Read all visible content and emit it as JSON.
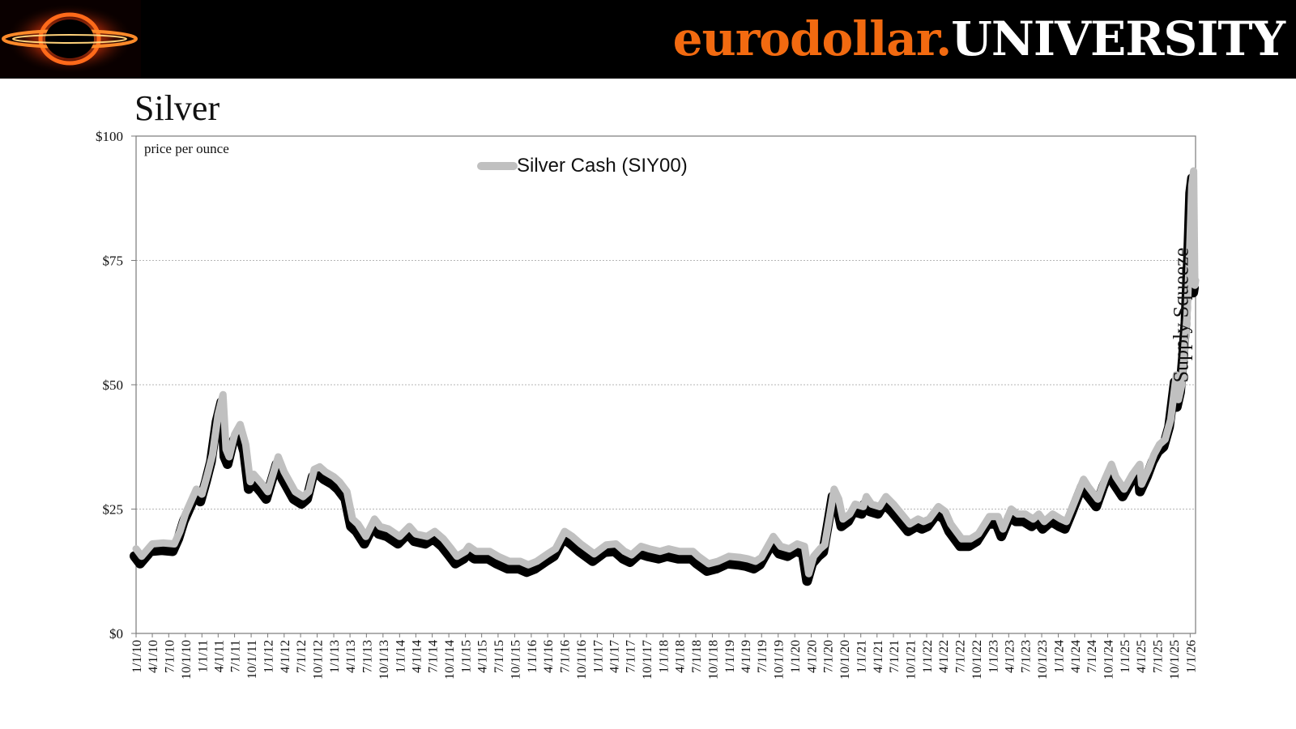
{
  "header": {
    "brand_part1": "eurodollar.",
    "brand_part2": "UNIVERSITY",
    "colors": {
      "background": "#000000",
      "brand_accent": "#f26a10",
      "brand_text": "#ffffff"
    }
  },
  "page_title": "Silver",
  "chart_data": {
    "type": "line",
    "title": "Silver",
    "ylabel": "price per ounce",
    "ylim": [
      0,
      100
    ],
    "xlim": [
      "2010-01-01",
      "2026-01-31"
    ],
    "yticks": [
      0,
      25,
      50,
      75,
      100
    ],
    "ytick_labels": [
      "$0",
      "$25",
      "$50",
      "$75",
      "$100"
    ],
    "xtick_labels": [
      "1/1/10",
      "4/1/10",
      "7/1/10",
      "10/1/10",
      "1/1/11",
      "4/1/11",
      "7/1/11",
      "10/1/11",
      "1/1/12",
      "4/1/12",
      "7/1/12",
      "10/1/12",
      "1/1/13",
      "4/1/13",
      "7/1/13",
      "10/1/13",
      "1/1/14",
      "4/1/14",
      "7/1/14",
      "10/1/14",
      "1/1/15",
      "4/1/15",
      "7/1/15",
      "10/1/15",
      "1/1/16",
      "4/1/16",
      "7/1/16",
      "10/1/16",
      "1/1/17",
      "4/1/17",
      "7/1/17",
      "10/1/17",
      "1/1/18",
      "4/1/18",
      "7/1/18",
      "10/1/18",
      "1/1/19",
      "4/1/19",
      "7/1/19",
      "10/1/19",
      "1/1/20",
      "4/1/20",
      "7/1/20",
      "10/1/20",
      "1/1/21",
      "4/1/21",
      "7/1/21",
      "10/1/21",
      "1/1/22",
      "4/1/22",
      "7/1/22",
      "10/1/22",
      "1/1/23",
      "4/1/23",
      "7/1/23",
      "10/1/23",
      "1/1/24",
      "4/1/24",
      "7/1/24",
      "10/1/24",
      "1/1/25",
      "4/1/25",
      "7/1/25",
      "10/1/25",
      "1/1/26"
    ],
    "grid": "horizontal",
    "legend": "top-center",
    "series": [
      {
        "name": "Silver Cash (SIY00)",
        "color": "#c0c0c0",
        "x": [
          "2010-01-01",
          "2010-02-01",
          "2010-04-01",
          "2010-06-01",
          "2010-08-01",
          "2010-09-01",
          "2010-10-01",
          "2010-12-01",
          "2011-01-01",
          "2011-02-01",
          "2011-03-01",
          "2011-04-01",
          "2011-04-28",
          "2011-05-15",
          "2011-06-01",
          "2011-07-01",
          "2011-08-01",
          "2011-09-01",
          "2011-09-26",
          "2011-10-15",
          "2011-12-01",
          "2012-01-01",
          "2012-02-28",
          "2012-04-01",
          "2012-06-01",
          "2012-07-15",
          "2012-08-15",
          "2012-09-15",
          "2012-10-15",
          "2012-11-15",
          "2013-01-01",
          "2013-02-01",
          "2013-03-15",
          "2013-04-15",
          "2013-05-15",
          "2013-06-28",
          "2013-08-15",
          "2013-09-15",
          "2013-11-01",
          "2014-01-01",
          "2014-02-24",
          "2014-04-01",
          "2014-06-01",
          "2014-07-15",
          "2014-09-01",
          "2014-10-15",
          "2014-11-15",
          "2015-01-01",
          "2015-01-20",
          "2015-03-01",
          "2015-05-15",
          "2015-07-01",
          "2015-09-01",
          "2015-11-01",
          "2015-12-15",
          "2016-02-01",
          "2016-04-01",
          "2016-05-15",
          "2016-07-04",
          "2016-08-15",
          "2016-10-01",
          "2016-12-15",
          "2017-02-20",
          "2017-04-15",
          "2017-06-01",
          "2017-07-10",
          "2017-09-01",
          "2017-10-15",
          "2017-12-15",
          "2018-02-01",
          "2018-04-01",
          "2018-06-15",
          "2018-07-15",
          "2018-09-10",
          "2018-11-01",
          "2019-01-01",
          "2019-03-01",
          "2019-04-15",
          "2019-05-28",
          "2019-07-01",
          "2019-09-04",
          "2019-10-15",
          "2019-12-01",
          "2020-01-15",
          "2020-02-24",
          "2020-03-18",
          "2020-04-15",
          "2020-05-20",
          "2020-06-15",
          "2020-07-10",
          "2020-08-06",
          "2020-09-01",
          "2020-09-24",
          "2020-11-01",
          "2020-12-01",
          "2021-01-15",
          "2021-02-01",
          "2021-03-01",
          "2021-04-15",
          "2021-05-20",
          "2021-07-01",
          "2021-08-15",
          "2021-09-29",
          "2021-11-15",
          "2021-12-15",
          "2022-01-15",
          "2022-03-07",
          "2022-04-15",
          "2022-05-15",
          "2022-07-15",
          "2022-09-01",
          "2022-10-15",
          "2022-12-15",
          "2023-02-01",
          "2023-02-28",
          "2023-04-15",
          "2023-05-20",
          "2023-07-01",
          "2023-08-15",
          "2023-09-15",
          "2023-10-15",
          "2023-12-01",
          "2024-01-15",
          "2024-02-15",
          "2024-03-15",
          "2024-05-20",
          "2024-06-15",
          "2024-08-07",
          "2024-09-15",
          "2024-10-22",
          "2024-11-15",
          "2024-12-31",
          "2025-02-15",
          "2025-03-28",
          "2025-04-07",
          "2025-05-15",
          "2025-06-15",
          "2025-07-15",
          "2025-08-15",
          "2025-09-15",
          "2025-10-16",
          "2025-10-28",
          "2025-11-15",
          "2025-12-01",
          "2025-12-15",
          "2025-12-29",
          "2026-01-10",
          "2026-01-20",
          "2026-01-27",
          "2026-01-31"
        ],
        "values": [
          17.0,
          15.5,
          18.0,
          18.2,
          18.0,
          20.5,
          24.0,
          29.0,
          28.0,
          32.0,
          36.0,
          44.0,
          48.0,
          37.0,
          35.5,
          40.0,
          42.0,
          38.0,
          30.5,
          32.0,
          30.0,
          28.5,
          35.5,
          32.5,
          28.5,
          27.5,
          28.5,
          33.0,
          33.5,
          32.5,
          31.5,
          30.5,
          28.5,
          23.0,
          22.0,
          19.5,
          23.0,
          21.5,
          21.0,
          19.5,
          21.5,
          20.0,
          19.5,
          20.5,
          19.0,
          17.0,
          15.5,
          16.5,
          17.5,
          16.5,
          16.5,
          15.5,
          14.5,
          14.5,
          13.8,
          14.5,
          16.0,
          17.0,
          20.5,
          19.5,
          18.0,
          16.0,
          17.8,
          18.0,
          16.5,
          15.8,
          17.5,
          17.0,
          16.5,
          17.0,
          16.5,
          16.5,
          15.5,
          14.0,
          14.5,
          15.5,
          15.3,
          15.0,
          14.5,
          15.3,
          19.5,
          17.5,
          17.0,
          18.0,
          17.5,
          12.0,
          15.5,
          17.0,
          17.8,
          23.0,
          29.0,
          27.0,
          23.0,
          24.0,
          26.0,
          25.5,
          27.5,
          26.0,
          25.5,
          27.5,
          26.0,
          24.0,
          22.0,
          23.0,
          22.5,
          23.0,
          25.5,
          24.5,
          22.0,
          19.0,
          19.0,
          20.0,
          23.5,
          23.5,
          21.0,
          25.0,
          24.0,
          24.0,
          23.0,
          24.0,
          22.5,
          24.0,
          23.0,
          22.5,
          25.0,
          31.0,
          29.5,
          27.0,
          31.0,
          34.0,
          31.5,
          29.0,
          32.0,
          34.0,
          30.0,
          33.0,
          36.0,
          38.0,
          39.0,
          43.0,
          52.0,
          47.0,
          50.0,
          57.0,
          64.0,
          77.0,
          90.0,
          93.0,
          70.0,
          71.0
        ]
      }
    ],
    "annotations": [
      {
        "text": "Supply Squeeze",
        "near_x": "2025-12-20",
        "orientation": "vertical"
      }
    ]
  }
}
